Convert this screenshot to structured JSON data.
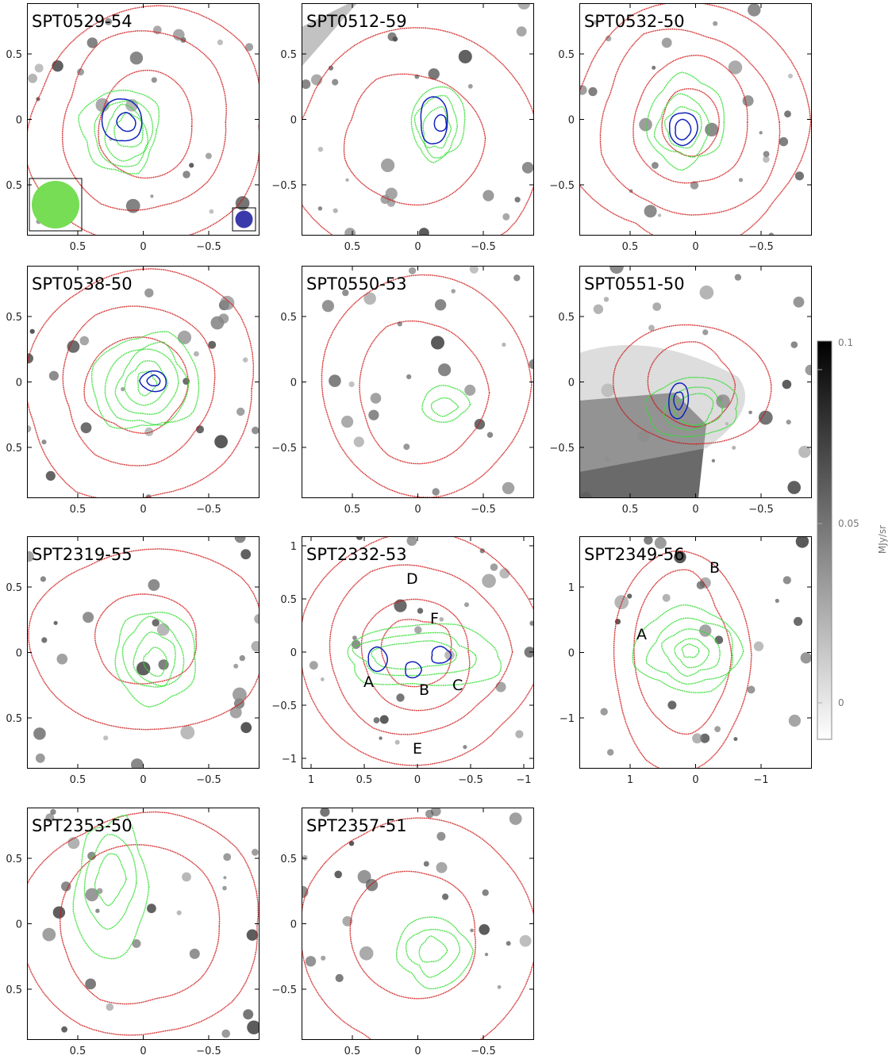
{
  "figure": {
    "colors": {
      "red_contour": "#cc1111",
      "green_contour": "#33dd33",
      "blue_contour": "#1122bb",
      "background": "#ffffff",
      "frame": "#000000"
    },
    "panels": [
      {
        "id": "SPT0529-54",
        "title": "SPT0529-54",
        "xticks": [
          "0.5",
          "0",
          "−0.5"
        ],
        "yticks": [
          "0.5",
          "0",
          "−0.5"
        ],
        "yticks_shown": [
          "0.5",
          "0",
          "0.5"
        ],
        "beam_legend": true,
        "labels": []
      },
      {
        "id": "SPT0512-59",
        "title": "SPT0512-59",
        "xticks": [
          "0.5",
          "0",
          "−0.5"
        ],
        "yticks_shown": [
          "0.5",
          "0",
          "−0.5"
        ],
        "labels": []
      },
      {
        "id": "SPT0532-50",
        "title": "SPT0532-50",
        "xticks": [
          "0.5",
          "0",
          "−0.5"
        ],
        "yticks_shown": [
          "0.5",
          "0",
          "−0.5"
        ],
        "labels": []
      },
      {
        "id": "SPT0538-50",
        "title": "SPT0538-50",
        "xticks": [
          "0.5",
          "0",
          "−0.5"
        ],
        "yticks_shown": [
          "0.5",
          "0",
          "0.5"
        ],
        "labels": []
      },
      {
        "id": "SPT0550-53",
        "title": "SPT0550-53",
        "xticks": [
          "0.5",
          "0",
          "−0.5"
        ],
        "yticks_shown": [
          "0.5",
          "0",
          "−0.5"
        ],
        "labels": []
      },
      {
        "id": "SPT0551-50",
        "title": "SPT0551-50",
        "xticks": [
          "0.5",
          "0",
          "−0.5"
        ],
        "yticks_shown": [
          "0.5",
          "0",
          "−0.5"
        ],
        "labels": []
      },
      {
        "id": "SPT2319-55",
        "title": "SPT2319-55",
        "xticks": [
          "0.5",
          "0",
          "−0.5"
        ],
        "yticks_shown": [
          "0.5",
          "0",
          "0.5"
        ],
        "labels": []
      },
      {
        "id": "SPT2332-53",
        "title": "SPT2332-53",
        "xticks": [
          "1",
          "0.5",
          "0",
          "−0.5",
          "−1"
        ],
        "yticks_shown": [
          "1",
          "0.5",
          "0",
          "−0.5",
          "−1"
        ],
        "labels": [
          "D",
          "F",
          "A",
          "B",
          "C",
          "E"
        ]
      },
      {
        "id": "SPT2349-56",
        "title": "SPT2349-56",
        "xticks": [
          "1",
          "0",
          "−1"
        ],
        "yticks_shown": [
          "1",
          "0",
          "−1"
        ],
        "labels": [
          "A",
          "B"
        ]
      },
      {
        "id": "SPT2353-50",
        "title": "SPT2353-50",
        "xticks": [
          "0.5",
          "0",
          "−0.5"
        ],
        "yticks_shown": [
          "0.5",
          "0",
          "0.5"
        ],
        "labels": []
      },
      {
        "id": "SPT2357-51",
        "title": "SPT2357-51",
        "xticks": [
          "0.5",
          "0",
          "−0.5"
        ],
        "yticks_shown": [
          "0.5",
          "0",
          "−0.5"
        ],
        "labels": []
      }
    ],
    "colorbar": {
      "label": "MJy/sr",
      "ticks": [
        "0.1",
        "0.05",
        "0"
      ],
      "range": [
        -0.01,
        0.1
      ]
    }
  }
}
